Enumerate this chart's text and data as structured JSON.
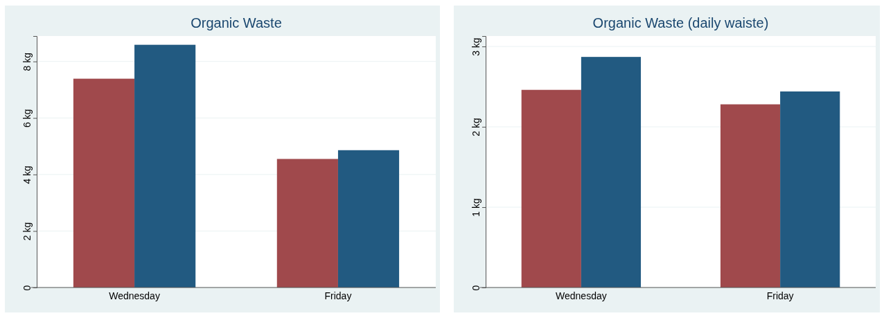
{
  "chart_data": [
    {
      "type": "bar",
      "title": "Organic Waste",
      "categories": [
        "Wednesday",
        "Friday"
      ],
      "series": [
        {
          "color": "#a0494c",
          "values": [
            7.39,
            4.55
          ]
        },
        {
          "color": "#225a81",
          "values": [
            8.59,
            4.86
          ]
        }
      ],
      "ylim": [
        0,
        8.9
      ],
      "yticks": [
        0,
        {
          "value": 2,
          "label": "2 kg"
        },
        {
          "value": 4,
          "label": "4 kg"
        },
        {
          "value": 6,
          "label": "6 kg"
        },
        {
          "value": 8,
          "label": "8 kg"
        }
      ],
      "grid": "y"
    },
    {
      "type": "bar",
      "title": "Organic Waste (daily waiste)",
      "categories": [
        "Wednesday",
        "Friday"
      ],
      "series": [
        {
          "color": "#a0494c",
          "values": [
            2.46,
            2.28
          ]
        },
        {
          "color": "#225a81",
          "values": [
            2.87,
            2.44
          ]
        }
      ],
      "ylim": [
        0,
        3.13
      ],
      "yticks": [
        0,
        {
          "value": 1,
          "label": "1 kg"
        },
        {
          "value": 2,
          "label": "2 kg"
        },
        {
          "value": 3,
          "label": "3 kg"
        }
      ],
      "grid": "y"
    }
  ]
}
